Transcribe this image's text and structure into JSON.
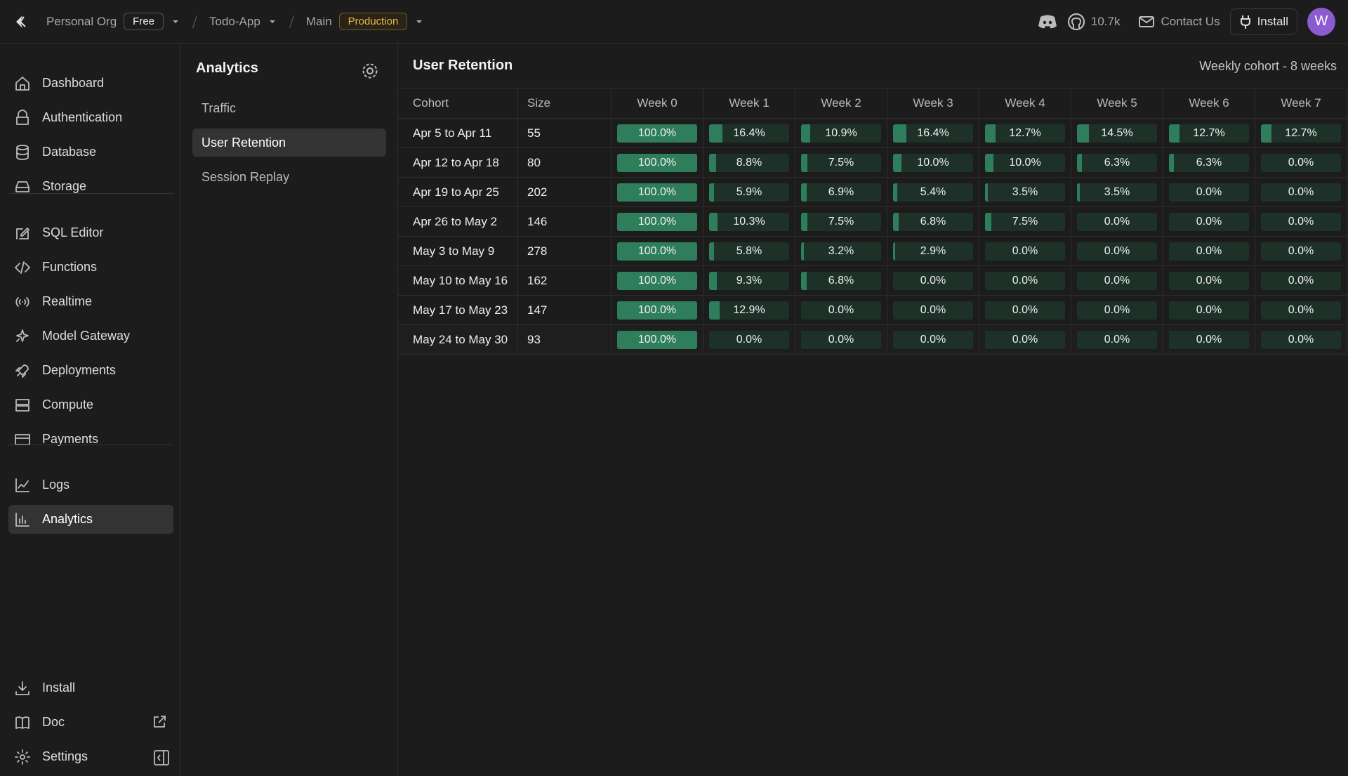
{
  "topbar": {
    "org": "Personal Org",
    "plan": "Free",
    "project": "Todo-App",
    "branch": "Main",
    "env": "Production",
    "github_stars": "10.7k",
    "contact": "Contact Us",
    "install": "Install",
    "avatar": "W"
  },
  "sidebar": {
    "groups": [
      [
        "Dashboard",
        "Authentication",
        "Database",
        "Storage"
      ],
      [
        "SQL Editor",
        "Functions",
        "Realtime",
        "Model Gateway",
        "Deployments",
        "Compute",
        "Payments"
      ],
      [
        "Logs",
        "Analytics"
      ]
    ],
    "bottom": [
      "Install",
      "Doc",
      "Settings"
    ]
  },
  "analytics_panel": {
    "title": "Analytics",
    "items": [
      "Traffic",
      "User Retention",
      "Session Replay"
    ]
  },
  "retention": {
    "title": "User Retention",
    "subtitle": "Weekly cohort - 8 weeks",
    "columns": [
      "Cohort",
      "Size",
      "Week 0",
      "Week 1",
      "Week 2",
      "Week 3",
      "Week 4",
      "Week 5",
      "Week 6",
      "Week 7"
    ],
    "rows": [
      {
        "cohort": "Apr 5 to Apr 11",
        "size": 55,
        "values": [
          100,
          16.4,
          10.9,
          16.4,
          12.7,
          14.5,
          12.7,
          12.7
        ],
        "value_labels": [
          "100.0%",
          "16.4%",
          "10.9%",
          "16.4%",
          "12.7%",
          "14.5%",
          "12.7%",
          "12.7%"
        ]
      },
      {
        "cohort": "Apr 12 to Apr 18",
        "size": 80,
        "values": [
          100,
          8.8,
          7.5,
          10,
          10,
          6.3,
          6.3,
          0
        ],
        "value_labels": [
          "100.0%",
          "8.8%",
          "7.5%",
          "10.0%",
          "10.0%",
          "6.3%",
          "6.3%",
          "0.0%"
        ]
      },
      {
        "cohort": "Apr 19 to Apr 25",
        "size": 202,
        "values": [
          100,
          5.9,
          6.9,
          5.4,
          3.5,
          3.5,
          0,
          0
        ],
        "value_labels": [
          "100.0%",
          "5.9%",
          "6.9%",
          "5.4%",
          "3.5%",
          "3.5%",
          "0.0%",
          "0.0%"
        ]
      },
      {
        "cohort": "Apr 26 to May 2",
        "size": 146,
        "values": [
          100,
          10.3,
          7.5,
          6.8,
          7.5,
          0,
          0,
          0
        ],
        "value_labels": [
          "100.0%",
          "10.3%",
          "7.5%",
          "6.8%",
          "7.5%",
          "0.0%",
          "0.0%",
          "0.0%"
        ]
      },
      {
        "cohort": "May 3 to May 9",
        "size": 278,
        "values": [
          100,
          5.8,
          3.2,
          2.9,
          0,
          0,
          0,
          0
        ],
        "value_labels": [
          "100.0%",
          "5.8%",
          "3.2%",
          "2.9%",
          "0.0%",
          "0.0%",
          "0.0%",
          "0.0%"
        ]
      },
      {
        "cohort": "May 10 to May 16",
        "size": 162,
        "values": [
          100,
          9.3,
          6.8,
          0,
          0,
          0,
          0,
          0
        ],
        "value_labels": [
          "100.0%",
          "9.3%",
          "6.8%",
          "0.0%",
          "0.0%",
          "0.0%",
          "0.0%",
          "0.0%"
        ]
      },
      {
        "cohort": "May 17 to May 23",
        "size": 147,
        "values": [
          100,
          12.9,
          0,
          0,
          0,
          0,
          0,
          0
        ],
        "value_labels": [
          "100.0%",
          "12.9%",
          "0.0%",
          "0.0%",
          "0.0%",
          "0.0%",
          "0.0%",
          "0.0%"
        ]
      },
      {
        "cohort": "May 24 to May 30",
        "size": 93,
        "values": [
          100,
          0,
          0,
          0,
          0,
          0,
          0,
          0
        ],
        "value_labels": [
          "100.0%",
          "0.0%",
          "0.0%",
          "0.0%",
          "0.0%",
          "0.0%",
          "0.0%",
          "0.0%"
        ]
      }
    ]
  }
}
